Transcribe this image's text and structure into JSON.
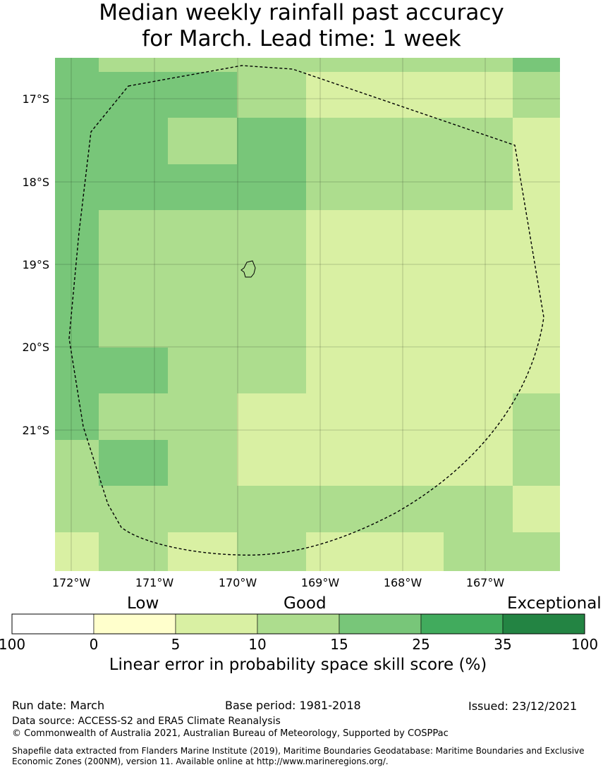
{
  "title": {
    "line1": "Median weekly rainfall past accuracy",
    "line2": "for March. Lead time: 1 week"
  },
  "map": {
    "lat_labels": [
      "17°S",
      "18°S",
      "19°S",
      "20°S",
      "21°S"
    ],
    "lon_labels": [
      "172°W",
      "171°W",
      "170°W",
      "169°W",
      "168°W",
      "167°W"
    ],
    "grid": {
      "cell_classes_rows_north_to_south": [
        [
          "15-25",
          "10-15",
          "10-15",
          "10-15",
          "10-15",
          "10-15",
          "15-25"
        ],
        [
          "15-25",
          "15-25",
          "15-25",
          "10-15",
          "5-10",
          "5-10",
          "10-15"
        ],
        [
          "15-25",
          "15-25",
          "10-15",
          "15-25",
          "10-15",
          "10-15",
          "5-10"
        ],
        [
          "15-25",
          "15-25",
          "15-25",
          "15-25",
          "10-15",
          "10-15",
          "5-10"
        ],
        [
          "15-25",
          "10-15",
          "10-15",
          "10-15",
          "5-10",
          "5-10",
          "5-10"
        ],
        [
          "15-25",
          "10-15",
          "10-15",
          "10-15",
          "5-10",
          "5-10",
          "5-10"
        ],
        [
          "15-25",
          "10-15",
          "10-15",
          "10-15",
          "5-10",
          "5-10",
          "5-10"
        ],
        [
          "15-25",
          "15-25",
          "10-15",
          "10-15",
          "5-10",
          "5-10",
          "5-10"
        ],
        [
          "15-25",
          "10-15",
          "10-15",
          "5-10",
          "5-10",
          "5-10",
          "10-15"
        ],
        [
          "10-15",
          "15-25",
          "10-15",
          "5-10",
          "5-10",
          "5-10",
          "10-15"
        ],
        [
          "10-15",
          "10-15",
          "10-15",
          "10-15",
          "10-15",
          "10-15",
          "5-10"
        ],
        [
          "5-10",
          "10-15",
          "5-10",
          "10-15",
          "5-10",
          "10-15",
          "10-15"
        ]
      ]
    }
  },
  "legend": {
    "categories": [
      "Low",
      "Good",
      "Exceptional"
    ],
    "ticks": [
      "100",
      "0",
      "5",
      "10",
      "15",
      "25",
      "35",
      "100"
    ],
    "colors": [
      "#ffffff",
      "#ffffcc",
      "#d9f0a3",
      "#addd8e",
      "#78c679",
      "#41ab5d",
      "#238443"
    ],
    "label": "Linear error in probability space skill score (%)"
  },
  "footer": {
    "run_date": "Run date: March",
    "base_period": "Base period: 1981-2018",
    "issued": "Issued: 23/12/2021",
    "data_source": "Data source: ACCESS-S2 and ERA5 Climate Reanalysis",
    "copyright": "© Commonwealth of Australia 2021, Australian Bureau of Meteorology, Supported by COSPPac",
    "shapefile_line1": "Shapefile data extracted from Flanders Marine Institute (2019), Maritime Boundaries Geodatabase: Maritime Boundaries and Exclusive",
    "shapefile_line2": "Economic Zones (200NM), version 11. Available online at http://www.marineregions.org/."
  }
}
